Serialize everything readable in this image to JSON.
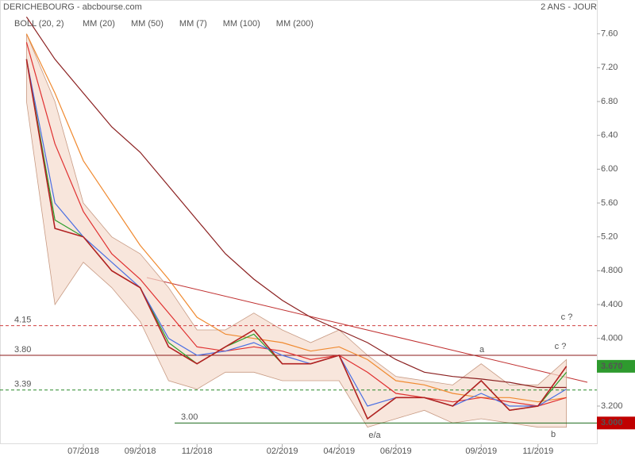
{
  "chart_data": {
    "type": "line",
    "title": "DERICHEBOURG - abcbourse.com",
    "subtitle": "2 ANS - JOUR",
    "x": [
      "2018-05",
      "2018-06",
      "2018-07",
      "2018-08",
      "2018-09",
      "2018-10",
      "2018-11",
      "2018-12",
      "2019-01",
      "2019-02",
      "2019-03",
      "2019-04",
      "2019-05",
      "2019-06",
      "2019-07",
      "2019-08",
      "2019-09",
      "2019-10",
      "2019-11",
      "2019-12"
    ],
    "price": {
      "color": "#b22222",
      "values": [
        7.3,
        5.3,
        5.2,
        4.8,
        4.6,
        3.9,
        3.7,
        3.9,
        4.1,
        3.7,
        3.7,
        3.8,
        3.05,
        3.3,
        3.3,
        3.2,
        3.5,
        3.15,
        3.2,
        3.67
      ]
    },
    "bollinger": {
      "name": "BOLL (20, 2)",
      "color": "#f5dccd",
      "upper": [
        7.6,
        6.8,
        5.6,
        5.2,
        5.0,
        4.6,
        4.1,
        4.1,
        4.3,
        4.1,
        3.95,
        4.1,
        3.8,
        3.55,
        3.5,
        3.45,
        3.7,
        3.45,
        3.45,
        3.75
      ],
      "lower": [
        6.8,
        4.4,
        4.9,
        4.6,
        4.2,
        3.5,
        3.4,
        3.6,
        3.6,
        3.5,
        3.5,
        3.5,
        2.95,
        3.05,
        3.15,
        3.0,
        3.05,
        3.0,
        2.95,
        2.95
      ]
    },
    "series": [
      {
        "name": "MM (20)",
        "color": "#4a6fe3",
        "values": [
          7.3,
          5.6,
          5.2,
          4.9,
          4.6,
          4.0,
          3.8,
          3.85,
          3.95,
          3.8,
          3.7,
          3.8,
          3.2,
          3.3,
          3.3,
          3.2,
          3.35,
          3.2,
          3.2,
          3.4
        ]
      },
      {
        "name": "MM (50)",
        "color": "#e03030",
        "values": [
          7.5,
          6.3,
          5.5,
          5.0,
          4.7,
          4.3,
          3.9,
          3.85,
          3.9,
          3.85,
          3.75,
          3.8,
          3.6,
          3.35,
          3.3,
          3.25,
          3.3,
          3.25,
          3.2,
          3.3
        ]
      },
      {
        "name": "MM (7)",
        "color": "#2a9d2a",
        "values": [
          7.3,
          5.4,
          5.2,
          4.8,
          4.6,
          3.95,
          3.7,
          3.9,
          4.05,
          3.7,
          3.7,
          3.8,
          3.05,
          3.3,
          3.3,
          3.2,
          3.5,
          3.15,
          3.2,
          3.6
        ]
      },
      {
        "name": "MM (100)",
        "color": "#f08a30",
        "values": [
          7.6,
          6.9,
          6.1,
          5.6,
          5.1,
          4.7,
          4.25,
          4.05,
          4.0,
          3.95,
          3.85,
          3.9,
          3.75,
          3.5,
          3.45,
          3.35,
          3.3,
          3.3,
          3.25,
          3.3
        ]
      },
      {
        "name": "MM (200)",
        "color": "#8b2020",
        "values": [
          7.8,
          7.3,
          6.9,
          6.5,
          6.2,
          5.8,
          5.4,
          5.0,
          4.7,
          4.45,
          4.25,
          4.1,
          3.95,
          3.75,
          3.6,
          3.55,
          3.52,
          3.48,
          3.42,
          3.42
        ]
      }
    ],
    "xticks": [
      {
        "value": "2018-07",
        "label": "07/2018"
      },
      {
        "value": "2018-09",
        "label": "09/2018"
      },
      {
        "value": "2018-11",
        "label": "11/2018"
      },
      {
        "value": "2019-02",
        "label": "02/2019"
      },
      {
        "value": "2019-04",
        "label": "04/2019"
      },
      {
        "value": "2019-06",
        "label": "06/2019"
      },
      {
        "value": "2019-09",
        "label": "09/2019"
      },
      {
        "value": "2019-11",
        "label": "11/2019"
      }
    ],
    "ylim": [
      2.75,
      8.0
    ],
    "yticks": [
      {
        "value": 7.6,
        "label": "7.60"
      },
      {
        "value": 7.2,
        "label": "7.20"
      },
      {
        "value": 6.8,
        "label": "6.80"
      },
      {
        "value": 6.4,
        "label": "6.40"
      },
      {
        "value": 6.0,
        "label": "6.00"
      },
      {
        "value": 5.6,
        "label": "5.60"
      },
      {
        "value": 5.2,
        "label": "5.20"
      },
      {
        "value": 4.8,
        "label": "4.800"
      },
      {
        "value": 4.4,
        "label": "4.400"
      },
      {
        "value": 4.0,
        "label": "4.000"
      },
      {
        "value": 3.2,
        "label": "3.200"
      }
    ],
    "levels": [
      {
        "value": 4.15,
        "label": "4.15",
        "color": "#d04040",
        "dashed": true
      },
      {
        "value": 3.8,
        "label": "3.80",
        "color": "#8b1a1a",
        "dashed": false
      },
      {
        "value": 3.39,
        "label": "3.39",
        "color": "#2a8a2a",
        "dashed": true
      },
      {
        "value": 3.0,
        "label": "3.00",
        "color": "#1e6b1e",
        "dashed": false
      }
    ],
    "badges": [
      {
        "value": 3.67,
        "label": "3.670",
        "color": "#2e9a2e"
      },
      {
        "value": 3.0,
        "label": "3.000",
        "color": "#c00000"
      }
    ],
    "annotations": [
      "c ?",
      "c ?",
      "a",
      "b",
      "e/a"
    ]
  }
}
